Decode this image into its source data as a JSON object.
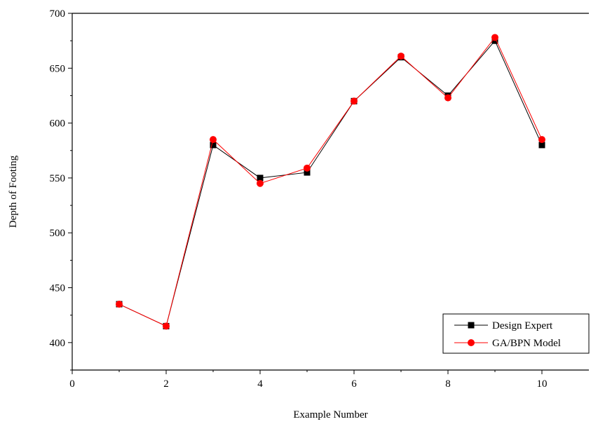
{
  "chart_data": {
    "type": "line",
    "title": "",
    "xlabel": "Example Number",
    "ylabel": "Depth of Footing",
    "xlim": [
      0,
      11
    ],
    "ylim": [
      375,
      700
    ],
    "xticks": [
      0,
      2,
      4,
      6,
      8,
      10
    ],
    "yticks": [
      400,
      450,
      500,
      550,
      600,
      650,
      700
    ],
    "grid": false,
    "legend_position": "bottom-right",
    "series": [
      {
        "name": "Design Expert",
        "color": "#000000",
        "marker": "square",
        "x": [
          1,
          2,
          3,
          4,
          5,
          6,
          7,
          8,
          9,
          10
        ],
        "y": [
          435,
          415,
          580,
          550,
          555,
          620,
          660,
          625,
          675,
          580
        ]
      },
      {
        "name": "GA/BPN Model",
        "color": "#ff0000",
        "marker": "circle",
        "x": [
          1,
          2,
          3,
          4,
          5,
          6,
          7,
          8,
          9,
          10
        ],
        "y": [
          435,
          415,
          585,
          545,
          559,
          620,
          661,
          623,
          678,
          585
        ]
      }
    ]
  }
}
